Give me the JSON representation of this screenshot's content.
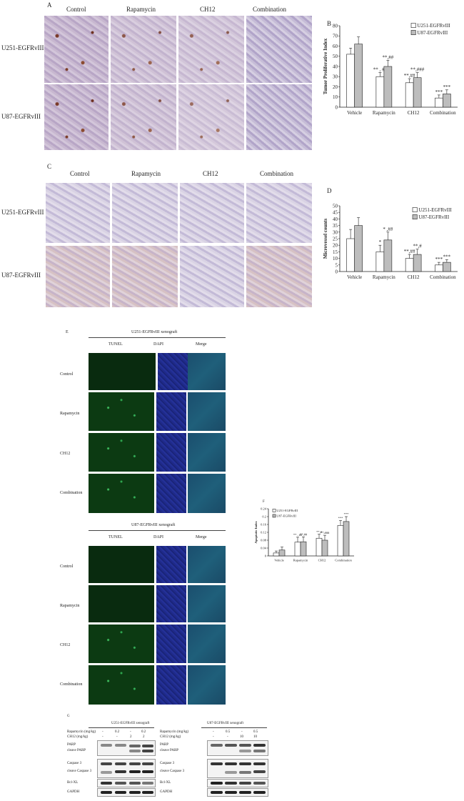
{
  "panelA": {
    "letter": "A",
    "columns": [
      "Control",
      "Rapamycin",
      "CH12",
      "Combination"
    ],
    "rows": [
      "U251-EGFRvIII",
      "U87-EGFRvIII"
    ]
  },
  "panelB": {
    "letter": "B",
    "chart_data": {
      "type": "bar",
      "ylabel": "Tumor Proliferative Index",
      "ylim": [
        0,
        80
      ],
      "yticks": [
        0,
        10,
        20,
        30,
        40,
        50,
        60,
        70,
        80
      ],
      "categories": [
        "Vehicle",
        "Rapamycin",
        "CH12",
        "Combination"
      ],
      "series": [
        {
          "name": "U251-EGFRvIII",
          "values": [
            52,
            30,
            24,
            9
          ],
          "errors": [
            6,
            4,
            4,
            3
          ]
        },
        {
          "name": "U87-EGFRvIII",
          "values": [
            62,
            40,
            29,
            13
          ],
          "errors": [
            7,
            6,
            5,
            4
          ]
        }
      ],
      "annotations": [
        "** , ##",
        "**,##",
        "**,##",
        "**,###",
        "***",
        "***"
      ],
      "legend": "top-right"
    }
  },
  "panelC": {
    "letter": "C",
    "columns": [
      "Control",
      "Rapamycin",
      "CH12",
      "Combination"
    ],
    "rows": [
      "U251-EGFRvIII",
      "U87-EGFRvIII"
    ]
  },
  "panelD": {
    "letter": "D",
    "chart_data": {
      "type": "bar",
      "ylabel": "Microvessel counts",
      "ylim": [
        0,
        50
      ],
      "yticks": [
        0,
        5,
        10,
        15,
        20,
        25,
        30,
        35,
        40,
        45,
        50
      ],
      "categories": [
        "Vehicle",
        "Rapamycin",
        "CH12",
        "Combination"
      ],
      "series": [
        {
          "name": "U251-EGFRvIII",
          "values": [
            25,
            15,
            10,
            5
          ],
          "errors": [
            7,
            5,
            3,
            2
          ]
        },
        {
          "name": "U87-EGFRvIII",
          "values": [
            35,
            24,
            13,
            7
          ],
          "errors": [
            6,
            6,
            4,
            2
          ]
        }
      ],
      "annotations": [
        "*",
        "* ,##",
        "**,##",
        "**,#",
        "***",
        "***"
      ],
      "legend": "top-right"
    }
  },
  "panelE": {
    "letter": "E",
    "groups": [
      {
        "title": "U251-EGFRvIII xenograft",
        "cols": [
          "TUNEL",
          "DAPI",
          "Merge"
        ],
        "rows": [
          "Control",
          "Rapamycin",
          "CH12",
          "Combination"
        ]
      },
      {
        "title": "U87-EGFRvIII xenograft",
        "cols": [
          "TUNEL",
          "DAPI",
          "Merge"
        ],
        "rows": [
          "Control",
          "Rapamycin",
          "CH12",
          "Combination"
        ]
      }
    ]
  },
  "panelF": {
    "letter": "F",
    "chart_data": {
      "type": "bar",
      "ylabel": "Apoptotic Index",
      "ylim": [
        0,
        0.24
      ],
      "yticks": [
        "0",
        "0.04",
        "0.08",
        "0.12",
        "0.16",
        "0.2",
        "0.24"
      ],
      "categories": [
        "Vehicle",
        "Rapamycin",
        "CH12",
        "Combination"
      ],
      "series": [
        {
          "name": "U251-EGFRvIII",
          "values": [
            0.015,
            0.07,
            0.09,
            0.155
          ],
          "errors": [
            0.01,
            0.025,
            0.02,
            0.025
          ]
        },
        {
          "name": "U87-EGFRvIII",
          "values": [
            0.03,
            0.072,
            0.08,
            0.175
          ],
          "errors": [
            0.015,
            0.025,
            0.025,
            0.025
          ]
        }
      ],
      "annotations": [
        "** , ##",
        "**,##",
        "**,#",
        "**,###",
        "***",
        "***"
      ],
      "legend": "top-left"
    }
  },
  "panelG": {
    "letter": "G",
    "blots": [
      {
        "title": "U251-EGFRvIII xenograft",
        "rapa_label": "Rapamycin (mg/kg)",
        "ch12_label": "CH12 (mg/kg)",
        "rapa_vals": [
          "-",
          "0.2",
          "-",
          "0.2"
        ],
        "ch12_vals": [
          "-",
          "-",
          "2",
          "2"
        ],
        "proteins": [
          "PARP",
          "cleave PARP",
          "Caspase 3",
          "cleave Caspase 3",
          "Bcl-XL",
          "GAPDH"
        ]
      },
      {
        "title": "U87-EGFRvIII xenograft",
        "rapa_label": "Rapamycin (mg/kg)",
        "ch12_label": "CH12 (mg/kg)",
        "rapa_vals": [
          "-",
          "0.5",
          "-",
          "0.5"
        ],
        "ch12_vals": [
          "-",
          "-",
          "10",
          "10"
        ],
        "proteins": [
          "PARP",
          "cleave PARP",
          "Caspase 3",
          "cleave Caspase 3",
          "Bcl-XL",
          "GAPDH"
        ]
      }
    ]
  }
}
